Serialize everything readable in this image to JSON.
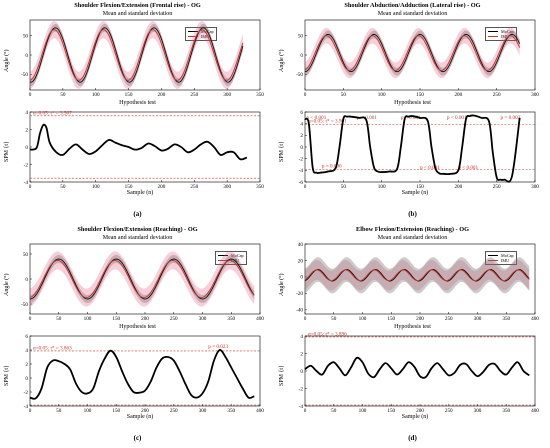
{
  "chart_data": [
    {
      "type": "line",
      "panel_label": "(a)",
      "title": "Shoulder Flexion/Extension (Frontal rise) - OG",
      "subtitle": "Mean and standard deviation",
      "ylabel": "Angle (°)",
      "xlim": [
        0,
        350
      ],
      "ylim": [
        -90,
        90
      ],
      "xticks": [
        "0",
        "50",
        "100",
        "150",
        "200",
        "250",
        "300",
        "350"
      ],
      "yticks": [
        "50",
        "0",
        "-50"
      ],
      "wave": {
        "amp": 70,
        "offset": 0,
        "period": 75,
        "phase": -20,
        "xmax": 325,
        "sd_mocap": 10,
        "sd_imu": 22
      },
      "legend": [
        "MoCap",
        "IMU"
      ],
      "test": {
        "title": "Hypothesis test",
        "ylabel": "SPM {t}",
        "xlabel": "Sample (n)",
        "xlim": [
          0,
          350
        ],
        "ylim": [
          -4,
          4
        ],
        "xticks": [
          "0",
          "50",
          "100",
          "150",
          "200",
          "250",
          "300",
          "350"
        ],
        "yticks": [
          "4",
          "2",
          "0",
          "-2",
          "-4"
        ],
        "threshold": 3.567,
        "annotation": "α=0.05:  t* = 3.567",
        "curve_x": [
          0,
          10,
          15,
          20,
          25,
          30,
          40,
          50,
          60,
          70,
          80,
          90,
          100,
          110,
          120,
          130,
          140,
          150,
          160,
          170,
          180,
          190,
          200,
          210,
          220,
          230,
          240,
          250,
          260,
          270,
          280,
          290,
          300,
          310,
          320,
          330
        ],
        "curve_y": [
          -0.3,
          -0.1,
          1.5,
          2.5,
          2.2,
          0.5,
          -0.6,
          -0.9,
          -0.2,
          0.3,
          -0.3,
          -0.8,
          -0.5,
          0.2,
          0.8,
          0.5,
          0.2,
          0.0,
          -0.3,
          -0.1,
          0.4,
          0.1,
          -0.4,
          -0.2,
          0.3,
          0.0,
          -0.6,
          -0.3,
          0.3,
          0.6,
          0.0,
          -0.9,
          -0.6,
          -0.6,
          -1.4,
          -1.2
        ]
      }
    },
    {
      "type": "line",
      "panel_label": "(b)",
      "title": "Shoulder Abduction/Adduction (Lateral rise) - OG",
      "subtitle": "Mean and standard deviation",
      "ylabel": "Angle (°)",
      "xlim": [
        0,
        300
      ],
      "ylim": [
        -90,
        90
      ],
      "xticks": [
        "0",
        "50",
        "100",
        "150",
        "200",
        "250",
        "300"
      ],
      "yticks": [
        "50",
        "0",
        "-50"
      ],
      "wave": {
        "amp": 48,
        "offset": 5,
        "period": 60,
        "phase": -15,
        "xmax": 280,
        "sd_mocap": 10,
        "sd_imu": 20
      },
      "legend": [
        "MoCap",
        "IMU"
      ],
      "test": {
        "title": "Hypothesis test",
        "ylabel": "SPM {t}",
        "xlabel": "Sample (n)",
        "xlim": [
          0,
          300
        ],
        "ylim": [
          -6,
          6
        ],
        "xticks": [
          "0",
          "50",
          "100",
          "150",
          "200",
          "250",
          "300"
        ],
        "yticks": [
          "6",
          "4",
          "2",
          "0",
          "-2",
          "-4",
          "-6"
        ],
        "threshold": 3.901,
        "annotation": "α=0.05:  t* = 3.901",
        "p_labels": [
          {
            "x": 2,
            "y": 4.8,
            "text": "p < 0.001"
          },
          {
            "x": 68,
            "y": 4.8,
            "text": "p < 0.001"
          },
          {
            "x": 125,
            "y": 4.8,
            "text": "p < 0.001"
          },
          {
            "x": 185,
            "y": 4.8,
            "text": "p < 0.001"
          },
          {
            "x": 255,
            "y": 4.8,
            "text": "p = 0.003"
          },
          {
            "x": 22,
            "y": -3.5,
            "text": "p = 0.006"
          },
          {
            "x": 150,
            "y": -3.8,
            "text": "p < 0.001"
          },
          {
            "x": 200,
            "y": -3.8,
            "text": "p < 0.001"
          }
        ],
        "curve_x": [
          0,
          5,
          10,
          15,
          20,
          30,
          40,
          45,
          50,
          55,
          60,
          70,
          80,
          85,
          90,
          95,
          100,
          110,
          120,
          125,
          130,
          135,
          140,
          150,
          160,
          165,
          170,
          175,
          180,
          190,
          200,
          205,
          210,
          215,
          220,
          230,
          240,
          245,
          250,
          255,
          260,
          270,
          280
        ],
        "curve_y": [
          4.8,
          4.0,
          -3.5,
          -4.4,
          -4.4,
          -4.2,
          -3.6,
          0,
          4.8,
          5.2,
          5.2,
          5.0,
          4.6,
          0,
          -3.5,
          -4.2,
          -4.3,
          -4.2,
          -3.8,
          0,
          4.8,
          5.2,
          5.3,
          5.0,
          4.5,
          0,
          -3.6,
          -4.5,
          -4.6,
          -4.6,
          -4.0,
          0,
          4.8,
          5.3,
          5.4,
          5.0,
          4.4,
          -1,
          -5.2,
          -5.6,
          -5.6,
          -5.0,
          5.0
        ]
      }
    },
    {
      "type": "line",
      "panel_label": "(c)",
      "title": "Shoulder Flexion/Extension (Reaching) - OG",
      "subtitle": "Mean and standard deviation",
      "ylabel": "Angle (°)",
      "xlim": [
        0,
        400
      ],
      "ylim": [
        -70,
        70
      ],
      "xticks": [
        "0",
        "50",
        "100",
        "150",
        "200",
        "250",
        "300",
        "350",
        "400"
      ],
      "yticks": [
        "50",
        "0",
        "-50"
      ],
      "wave": {
        "amp": 40,
        "offset": 0,
        "period": 100,
        "phase": -25,
        "xmax": 390,
        "sd_mocap": 8,
        "sd_imu": 18
      },
      "legend": [
        "MoCap",
        "IMU"
      ],
      "test": {
        "title": "Hypothesis test",
        "ylabel": "SPM {t}",
        "xlabel": "Sample (n)",
        "xlim": [
          0,
          400
        ],
        "ylim": [
          -4,
          6
        ],
        "xticks": [
          "0",
          "50",
          "100",
          "150",
          "200",
          "250",
          "300",
          "350",
          "400"
        ],
        "yticks": [
          "6",
          "4",
          "2",
          "0",
          "-2",
          "-4"
        ],
        "threshold": 3.863,
        "annotation": "α=0.05:  t* = 3.863",
        "p_labels": [
          {
            "x": 310,
            "y": 4.3,
            "text": "p = 0.023"
          }
        ],
        "curve_x": [
          0,
          10,
          20,
          30,
          40,
          50,
          60,
          70,
          80,
          90,
          100,
          110,
          120,
          130,
          140,
          150,
          160,
          170,
          180,
          190,
          200,
          210,
          220,
          230,
          240,
          250,
          260,
          270,
          280,
          290,
          300,
          310,
          320,
          330,
          340,
          350,
          360,
          370,
          380,
          390
        ],
        "curve_y": [
          -2.8,
          -2.9,
          -1.5,
          1.5,
          2.5,
          2.4,
          2.0,
          1.2,
          -0.8,
          -2.0,
          -2.2,
          -1.5,
          1.0,
          2.8,
          3.9,
          3.0,
          1.0,
          -0.8,
          -2.0,
          -2.1,
          -1.8,
          -0.5,
          1.5,
          2.8,
          3.0,
          2.5,
          1.0,
          -0.8,
          -2.4,
          -2.8,
          -2.2,
          -0.5,
          2.5,
          4.0,
          3.0,
          1.5,
          0.0,
          -1.5,
          -2.8,
          -2.6
        ]
      }
    },
    {
      "type": "line",
      "panel_label": "(d)",
      "title": "Elbow Flexion/Extension (Reaching) - OG",
      "subtitle": "Mean and standard deviation",
      "ylabel": "Angle (°)",
      "xlim": [
        0,
        400
      ],
      "ylim": [
        -45,
        40
      ],
      "xticks": [
        "0",
        "50",
        "100",
        "150",
        "200",
        "250",
        "300",
        "350",
        "400"
      ],
      "yticks": [
        "40",
        "20",
        "0",
        "-20",
        "-40"
      ],
      "wave": {
        "amp": 7,
        "offset": 2,
        "period": 50,
        "phase": -10,
        "xmax": 390,
        "sd_mocap": 15,
        "sd_imu": 12
      },
      "legend": [
        "MoCap",
        "IMU"
      ],
      "test": {
        "title": "Hypothesis test",
        "ylabel": "SPM {t}",
        "xlabel": "Sample (n)",
        "xlim": [
          0,
          400
        ],
        "ylim": [
          -4,
          4
        ],
        "xticks": [
          "0",
          "50",
          "100",
          "150",
          "200",
          "250",
          "300",
          "350",
          "400"
        ],
        "yticks": [
          "4",
          "2",
          "0",
          "-2",
          "-4"
        ],
        "threshold": 3.896,
        "annotation": "α=0.05:  t* = 3.896",
        "curve_x": [
          0,
          10,
          20,
          30,
          40,
          50,
          60,
          70,
          80,
          90,
          100,
          110,
          120,
          130,
          140,
          150,
          160,
          170,
          180,
          190,
          200,
          210,
          220,
          230,
          240,
          250,
          260,
          270,
          280,
          290,
          300,
          310,
          320,
          330,
          340,
          350,
          360,
          370,
          380,
          390
        ],
        "curve_y": [
          0.2,
          0.6,
          0.0,
          -0.4,
          0.6,
          1.0,
          0.3,
          -0.5,
          0.4,
          1.5,
          1.0,
          -0.3,
          -0.7,
          0.2,
          0.9,
          0.3,
          -0.4,
          0.2,
          1.0,
          0.5,
          -0.6,
          -0.7,
          0.3,
          0.9,
          0.2,
          -0.5,
          -0.2,
          0.7,
          0.8,
          0.0,
          -0.6,
          -0.1,
          0.7,
          0.8,
          0.0,
          -0.4,
          0.4,
          1.0,
          0.0,
          -0.5
        ]
      }
    }
  ]
}
